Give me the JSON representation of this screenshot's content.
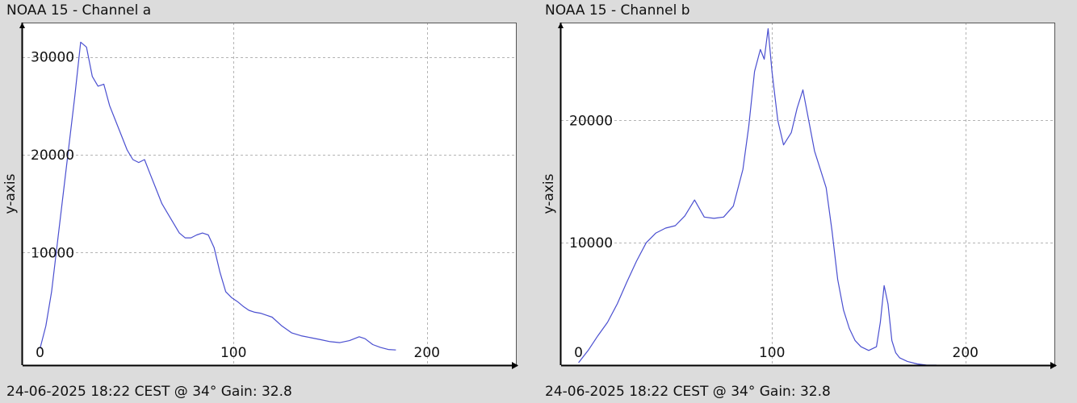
{
  "charts": [
    {
      "title": "NOAA 15 - Channel a",
      "footer": "24-06-2025 18:22 CEST @ 34° Gain: 32.8"
    },
    {
      "title": "NOAA 15 - Channel b",
      "footer": "24-06-2025 18:22 CEST @ 34° Gain: 32.8"
    }
  ],
  "colors": {
    "line": "#4a4fd0",
    "grid": "#b4b4b4",
    "background": "#ffffff",
    "page": "#dcdcdc",
    "axis": "#000000"
  },
  "chart_data": [
    {
      "type": "line",
      "title": "NOAA 15 - Channel a",
      "xlabel": "",
      "ylabel": "y-axis",
      "xlim": [
        -9,
        246
      ],
      "ylim": [
        -1500,
        33500
      ],
      "xticks": [
        0,
        100,
        200
      ],
      "yticks": [
        10000,
        20000,
        30000
      ],
      "grid": true,
      "series": [
        {
          "x": [
            0,
            3,
            6,
            9,
            12,
            15,
            18,
            21,
            24,
            27,
            30,
            33,
            36,
            39,
            42,
            45,
            48,
            51,
            54,
            57,
            60,
            63,
            66,
            69,
            72,
            75,
            78,
            81,
            84,
            87,
            90,
            93,
            96,
            99,
            102,
            105,
            108,
            111,
            114,
            117,
            120,
            125,
            130,
            135,
            140,
            145,
            150,
            155,
            160,
            165,
            168,
            172,
            176,
            180,
            184
          ],
          "y": [
            200,
            2500,
            6000,
            11000,
            16000,
            21000,
            26000,
            31500,
            31000,
            28000,
            27000,
            27200,
            25000,
            23500,
            22000,
            20500,
            19500,
            19200,
            19500,
            18000,
            16500,
            15000,
            14000,
            13000,
            12000,
            11500,
            11500,
            11800,
            12000,
            11800,
            10500,
            8000,
            6000,
            5400,
            5000,
            4500,
            4100,
            3900,
            3800,
            3600,
            3400,
            2500,
            1800,
            1500,
            1300,
            1100,
            900,
            800,
            1000,
            1400,
            1200,
            600,
            300,
            100,
            50
          ]
        }
      ]
    },
    {
      "type": "line",
      "title": "NOAA 15 - Channel b",
      "xlabel": "",
      "ylabel": "y-axis",
      "xlim": [
        -9,
        246
      ],
      "ylim": [
        0,
        28000
      ],
      "xticks": [
        0,
        100,
        200
      ],
      "yticks": [
        10000,
        20000
      ],
      "grid": true,
      "series": [
        {
          "x": [
            0,
            5,
            10,
            15,
            20,
            25,
            30,
            35,
            40,
            45,
            50,
            55,
            60,
            65,
            70,
            75,
            80,
            85,
            88,
            91,
            94,
            96,
            98,
            100,
            103,
            106,
            110,
            113,
            116,
            119,
            122,
            125,
            128,
            131,
            134,
            137,
            140,
            143,
            146,
            150,
            154,
            156,
            158,
            160,
            162,
            164,
            166,
            170,
            175,
            180,
            185
          ],
          "y": [
            200,
            1200,
            2400,
            3500,
            5000,
            6800,
            8500,
            10000,
            10800,
            11200,
            11400,
            12200,
            13500,
            12100,
            12000,
            12100,
            13000,
            16000,
            19500,
            24000,
            25800,
            25000,
            27500,
            24000,
            20000,
            18000,
            19000,
            21000,
            22500,
            20000,
            17500,
            16000,
            14500,
            11000,
            7000,
            4500,
            3000,
            2000,
            1500,
            1200,
            1500,
            3500,
            6500,
            5000,
            2000,
            1000,
            600,
            300,
            100,
            0,
            0
          ]
        }
      ]
    }
  ]
}
